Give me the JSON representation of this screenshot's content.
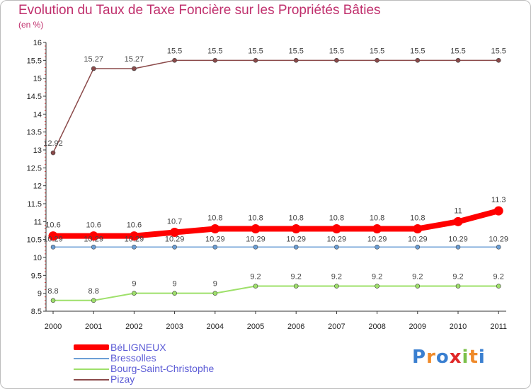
{
  "chart_data": {
    "type": "line",
    "title": "Evolution du Taux de Taxe Foncière sur les Propriétés Bâties",
    "ylabel": "(en %)",
    "xlabel": "",
    "categories": [
      "2000",
      "2001",
      "2002",
      "2003",
      "2004",
      "2005",
      "2006",
      "2007",
      "2008",
      "2009",
      "2010",
      "2011"
    ],
    "ylim": [
      8.5,
      16
    ],
    "y_ticks": [
      "8.5",
      "9",
      "9.5",
      "10",
      "10.5",
      "11",
      "11.5",
      "12",
      "12.5",
      "13",
      "13.5",
      "14",
      "14.5",
      "15",
      "15.5",
      "16"
    ],
    "series": [
      {
        "name": "BéLIGNEUX",
        "color": "#ff0000",
        "values": [
          10.6,
          10.6,
          10.6,
          10.7,
          10.8,
          10.8,
          10.8,
          10.8,
          10.8,
          10.8,
          11,
          11.3
        ],
        "labels": [
          "10.6",
          "10.6",
          "10.6",
          "10.7",
          "10.8",
          "10.8",
          "10.8",
          "10.8",
          "10.8",
          "10.8",
          "11",
          "11.3"
        ]
      },
      {
        "name": "Bressolles",
        "color": "#6c9fd6",
        "values": [
          10.29,
          10.29,
          10.29,
          10.29,
          10.29,
          10.29,
          10.29,
          10.29,
          10.29,
          10.29,
          10.29,
          10.29
        ],
        "labels": [
          "10.29",
          "10.29",
          "10.29",
          "10.29",
          "10.29",
          "10.29",
          "10.29",
          "10.29",
          "10.29",
          "10.29",
          "10.29",
          "10.29"
        ]
      },
      {
        "name": "Bourg-Saint-Christophe",
        "color": "#9ee06a",
        "values": [
          8.8,
          8.8,
          9,
          9,
          9,
          9.2,
          9.2,
          9.2,
          9.2,
          9.2,
          9.2,
          9.2
        ],
        "labels": [
          "8.8",
          "8.8",
          "9",
          "9",
          "9",
          "9.2",
          "9.2",
          "9.2",
          "9.2",
          "9.2",
          "9.2",
          "9.2"
        ]
      },
      {
        "name": "Pizay",
        "color": "#8b4a4a",
        "values": [
          12.92,
          15.27,
          15.27,
          15.5,
          15.5,
          15.5,
          15.5,
          15.5,
          15.5,
          15.5,
          15.5,
          15.5
        ],
        "labels": [
          "12.92",
          "15.27",
          "15.27",
          "15.5",
          "15.5",
          "15.5",
          "15.5",
          "15.5",
          "15.5",
          "15.5",
          "15.5",
          "15.5"
        ]
      }
    ],
    "legend_position": "bottom-left"
  },
  "logo": {
    "text": "Proxiti"
  }
}
